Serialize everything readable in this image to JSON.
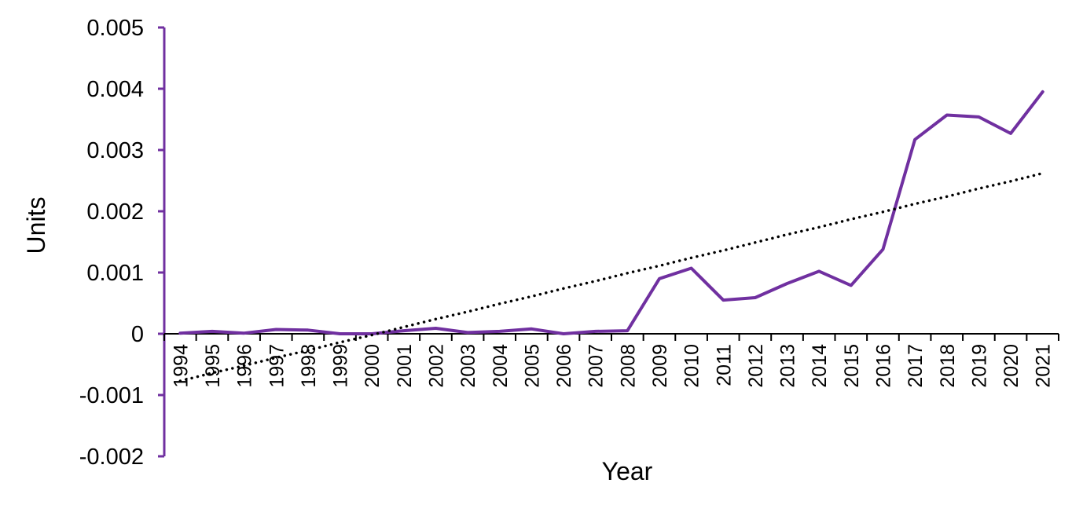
{
  "chart_data": {
    "type": "line",
    "xlabel": "Year",
    "ylabel": "Units",
    "ylim": [
      -0.002,
      0.005
    ],
    "y_ticks": [
      "-0.002",
      "-0.001",
      "0",
      "0.001",
      "0.002",
      "0.003",
      "0.004",
      "0.005"
    ],
    "categories": [
      "1994",
      "1995",
      "1996",
      "1997",
      "1998",
      "1999",
      "2000",
      "2001",
      "2002",
      "2003",
      "2004",
      "2005",
      "2006",
      "2007",
      "2008",
      "2009",
      "2010",
      "2011",
      "2012",
      "2013",
      "2014",
      "2015",
      "2016",
      "2017",
      "2018",
      "2019",
      "2020",
      "2021"
    ],
    "series": [
      {
        "type": "line",
        "color": "#7030a0",
        "values": [
          1e-05,
          4e-05,
          1e-05,
          7e-05,
          6e-05,
          0.0,
          0.0,
          5e-05,
          9e-05,
          2e-05,
          4e-05,
          8e-05,
          0.0,
          4e-05,
          5e-05,
          0.0009,
          0.00107,
          0.00055,
          0.00059,
          0.00082,
          0.00102,
          0.00079,
          0.00138,
          0.00317,
          0.00357,
          0.00354,
          0.00327,
          0.00395
        ]
      },
      {
        "type": "linear trendline",
        "style": "dotted",
        "color": "#000000",
        "values": [
          -0.00077,
          -0.00064,
          -0.00052,
          -0.00039,
          -0.00027,
          -0.00014,
          -2e-05,
          0.00011,
          0.00024,
          0.00036,
          0.00049,
          0.00061,
          0.00074,
          0.00086,
          0.00099,
          0.00111,
          0.00124,
          0.00136,
          0.00149,
          0.00162,
          0.00174,
          0.00187,
          0.00199,
          0.00212,
          0.00224,
          0.00237,
          0.00249,
          0.00262
        ]
      }
    ],
    "axis_color": "#7030a0",
    "grid": false,
    "legend": "none"
  }
}
